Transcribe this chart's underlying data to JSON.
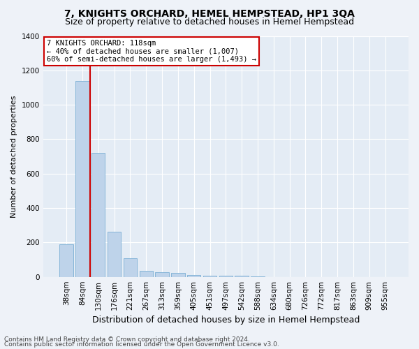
{
  "title": "7, KNIGHTS ORCHARD, HEMEL HEMPSTEAD, HP1 3QA",
  "subtitle": "Size of property relative to detached houses in Hemel Hempstead",
  "xlabel": "Distribution of detached houses by size in Hemel Hempstead",
  "ylabel": "Number of detached properties",
  "footer_line1": "Contains HM Land Registry data © Crown copyright and database right 2024.",
  "footer_line2": "Contains public sector information licensed under the Open Government Licence v3.0.",
  "categories": [
    "38sqm",
    "84sqm",
    "130sqm",
    "176sqm",
    "221sqm",
    "267sqm",
    "313sqm",
    "359sqm",
    "405sqm",
    "451sqm",
    "497sqm",
    "542sqm",
    "588sqm",
    "634sqm",
    "680sqm",
    "726sqm",
    "772sqm",
    "817sqm",
    "863sqm",
    "909sqm",
    "955sqm"
  ],
  "values": [
    190,
    1140,
    720,
    262,
    108,
    35,
    27,
    22,
    10,
    8,
    5,
    5,
    2,
    0,
    0,
    0,
    0,
    0,
    0,
    0,
    0
  ],
  "bar_color": "#bed3ea",
  "bar_edge_color": "#7aaed4",
  "property_line_color": "#cc0000",
  "annotation_text": "7 KNIGHTS ORCHARD: 118sqm\n← 40% of detached houses are smaller (1,007)\n60% of semi-detached houses are larger (1,493) →",
  "annotation_box_facecolor": "#ffffff",
  "annotation_box_edgecolor": "#cc0000",
  "ylim": [
    0,
    1400
  ],
  "yticks": [
    0,
    200,
    400,
    600,
    800,
    1000,
    1200,
    1400
  ],
  "bg_color": "#eef2f8",
  "plot_bg_color": "#e4ecf5",
  "grid_color": "#ffffff",
  "title_fontsize": 10,
  "subtitle_fontsize": 9,
  "ylabel_fontsize": 8,
  "xlabel_fontsize": 9,
  "tick_fontsize": 7.5,
  "annotation_fontsize": 7.5,
  "footer_fontsize": 6.5
}
